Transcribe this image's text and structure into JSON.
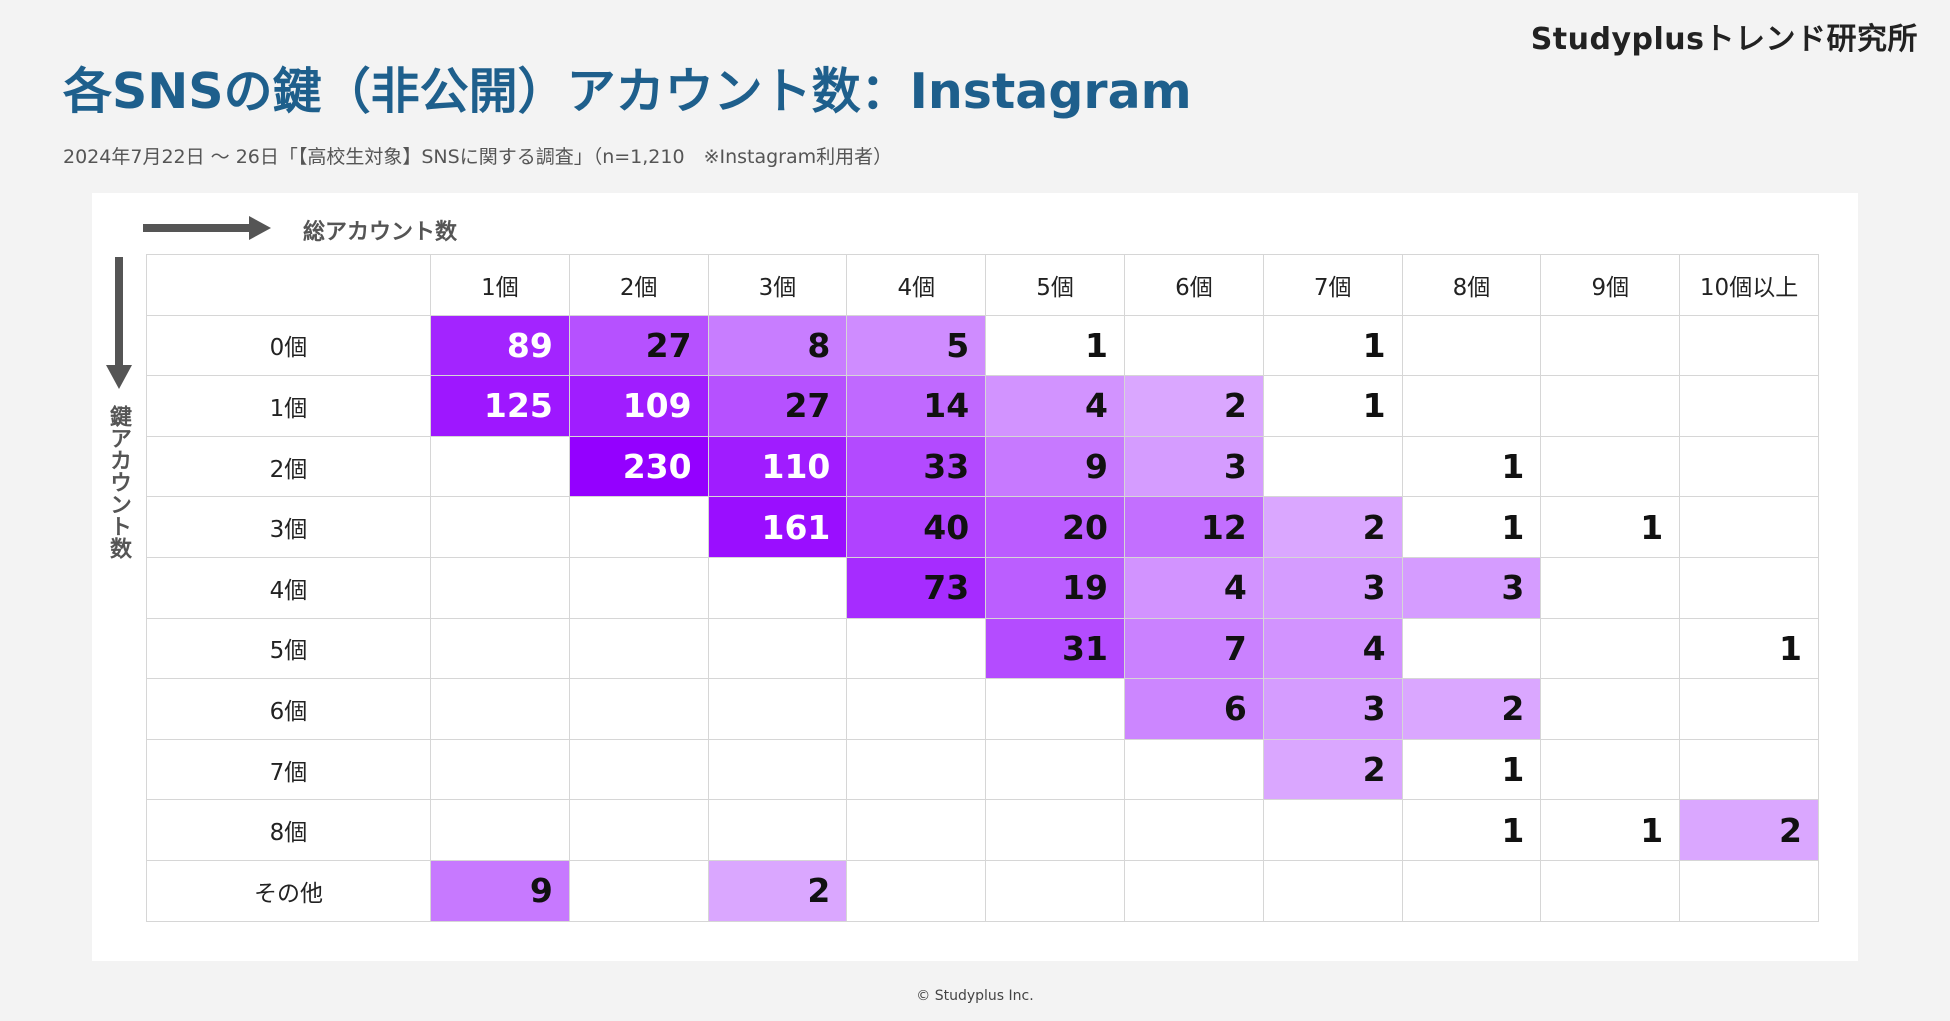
{
  "brand": "Studyplusトレンド研究所",
  "title": "各SNSの鍵（非公開）アカウント数：Instagram",
  "subtitle": "2024年7月22日 〜 26日「【高校生対象】SNSに関する調査」（n=1,210　※Instagram利用者）",
  "footer": "© Studyplus Inc.",
  "colors": {
    "title": "#1e5f8c",
    "heat_max": "#9400ff",
    "arrow": "#555555"
  },
  "chart_data": {
    "type": "heatmap",
    "xlabel": "総アカウント数",
    "ylabel": "鍵アカウント数",
    "columns": [
      "1個",
      "2個",
      "3個",
      "4個",
      "5個",
      "6個",
      "7個",
      "8個",
      "9個",
      "10個以上"
    ],
    "rows": [
      "0個",
      "1個",
      "2個",
      "3個",
      "4個",
      "5個",
      "6個",
      "7個",
      "8個",
      "その他"
    ],
    "values": [
      [
        89,
        27,
        8,
        5,
        1,
        null,
        1,
        null,
        null,
        null
      ],
      [
        125,
        109,
        27,
        14,
        4,
        2,
        1,
        null,
        null,
        null
      ],
      [
        null,
        230,
        110,
        33,
        9,
        3,
        null,
        1,
        null,
        null
      ],
      [
        null,
        null,
        161,
        40,
        20,
        12,
        2,
        1,
        1,
        null
      ],
      [
        null,
        null,
        null,
        73,
        19,
        4,
        3,
        3,
        null,
        null
      ],
      [
        null,
        null,
        null,
        null,
        31,
        7,
        4,
        null,
        null,
        1
      ],
      [
        null,
        null,
        null,
        null,
        null,
        6,
        3,
        2,
        null,
        null
      ],
      [
        null,
        null,
        null,
        null,
        null,
        null,
        2,
        1,
        null,
        null
      ],
      [
        null,
        null,
        null,
        null,
        null,
        null,
        null,
        1,
        1,
        2
      ],
      [
        9,
        null,
        2,
        null,
        null,
        null,
        null,
        null,
        null,
        null
      ]
    ],
    "shaded": [
      [
        true,
        true,
        true,
        true,
        false,
        false,
        false,
        false,
        false,
        false
      ],
      [
        true,
        true,
        true,
        true,
        true,
        true,
        false,
        false,
        false,
        false
      ],
      [
        false,
        true,
        true,
        true,
        true,
        true,
        false,
        false,
        false,
        false
      ],
      [
        false,
        false,
        true,
        true,
        true,
        true,
        true,
        false,
        false,
        false
      ],
      [
        false,
        false,
        false,
        true,
        true,
        true,
        true,
        true,
        false,
        false
      ],
      [
        false,
        false,
        false,
        false,
        true,
        true,
        true,
        false,
        false,
        false
      ],
      [
        false,
        false,
        false,
        false,
        false,
        true,
        true,
        true,
        false,
        false
      ],
      [
        false,
        false,
        false,
        false,
        false,
        false,
        true,
        false,
        false,
        false
      ],
      [
        false,
        false,
        false,
        false,
        false,
        false,
        false,
        false,
        false,
        true
      ],
      [
        true,
        false,
        true,
        false,
        false,
        false,
        false,
        false,
        false,
        false
      ]
    ]
  }
}
